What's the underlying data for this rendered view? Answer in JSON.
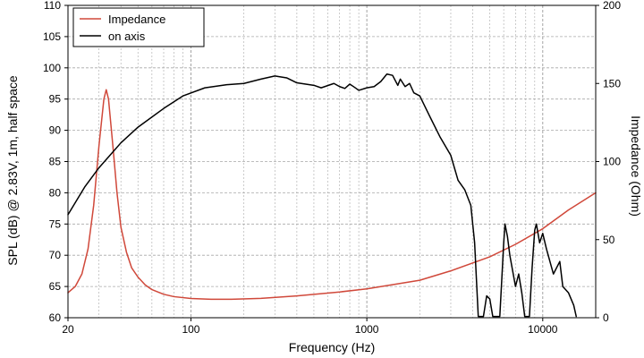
{
  "chart_data": {
    "type": "line",
    "xscale": "log",
    "xlim": [
      20,
      20000
    ],
    "ylim_left": [
      60,
      110
    ],
    "ylim_right": [
      0,
      200
    ],
    "xlabel": "Frequency (Hz)",
    "ylabel_left": "SPL (dB) @ 2.83V, 1m, half space",
    "ylabel_right": "Impedance (Ohm)",
    "x_tick_values": [
      20,
      100,
      1000,
      10000
    ],
    "x_tick_labels": [
      "20",
      "100",
      "1000",
      "10000"
    ],
    "y_left_ticks": [
      "60",
      "65",
      "70",
      "75",
      "80",
      "85",
      "90",
      "95",
      "100",
      "105",
      "110"
    ],
    "y_right_ticks": [
      "0",
      "50",
      "100",
      "150",
      "200"
    ],
    "grid": true,
    "legend_position": "top-left",
    "series": [
      {
        "name": "Impedance",
        "axis": "right",
        "color": "#d0483a",
        "points": [
          [
            20,
            16
          ],
          [
            22,
            20
          ],
          [
            24,
            28
          ],
          [
            26,
            44
          ],
          [
            28,
            72
          ],
          [
            30,
            110
          ],
          [
            32,
            140
          ],
          [
            33,
            146
          ],
          [
            34,
            140
          ],
          [
            36,
            110
          ],
          [
            38,
            80
          ],
          [
            40,
            58
          ],
          [
            43,
            42
          ],
          [
            46,
            32
          ],
          [
            50,
            26
          ],
          [
            55,
            21
          ],
          [
            60,
            18
          ],
          [
            70,
            15
          ],
          [
            80,
            13.5
          ],
          [
            100,
            12.3
          ],
          [
            130,
            11.8
          ],
          [
            170,
            11.8
          ],
          [
            250,
            12.4
          ],
          [
            400,
            14
          ],
          [
            700,
            16.5
          ],
          [
            1000,
            18.5
          ],
          [
            2000,
            24
          ],
          [
            3000,
            30
          ],
          [
            5000,
            39
          ],
          [
            7000,
            47
          ],
          [
            10000,
            57
          ],
          [
            14000,
            69
          ],
          [
            20000,
            80
          ]
        ]
      },
      {
        "name": "on axis",
        "axis": "left",
        "color": "#000000",
        "points": [
          [
            20,
            76.5
          ],
          [
            25,
            81
          ],
          [
            30,
            84
          ],
          [
            40,
            88
          ],
          [
            50,
            90.5
          ],
          [
            70,
            93.5
          ],
          [
            90,
            95.5
          ],
          [
            120,
            96.8
          ],
          [
            160,
            97.3
          ],
          [
            200,
            97.5
          ],
          [
            250,
            98.2
          ],
          [
            300,
            98.7
          ],
          [
            350,
            98.4
          ],
          [
            400,
            97.6
          ],
          [
            500,
            97.2
          ],
          [
            550,
            96.8
          ],
          [
            650,
            97.5
          ],
          [
            700,
            97
          ],
          [
            750,
            96.7
          ],
          [
            800,
            97.4
          ],
          [
            850,
            96.9
          ],
          [
            900,
            96.4
          ],
          [
            1000,
            96.8
          ],
          [
            1100,
            97
          ],
          [
            1200,
            97.8
          ],
          [
            1300,
            99
          ],
          [
            1400,
            98.8
          ],
          [
            1500,
            97.2
          ],
          [
            1550,
            98.2
          ],
          [
            1650,
            97
          ],
          [
            1750,
            97.5
          ],
          [
            1850,
            96
          ],
          [
            2000,
            95.5
          ],
          [
            2300,
            92
          ],
          [
            2600,
            89
          ],
          [
            3000,
            86
          ],
          [
            3300,
            82
          ],
          [
            3600,
            80.5
          ],
          [
            3900,
            78
          ],
          [
            4100,
            72
          ],
          [
            4200,
            66
          ],
          [
            4300,
            60.2
          ],
          [
            4600,
            60.2
          ],
          [
            4800,
            63.5
          ],
          [
            5000,
            63
          ],
          [
            5200,
            60.2
          ],
          [
            5700,
            60.2
          ],
          [
            6000,
            72
          ],
          [
            6100,
            75
          ],
          [
            6300,
            73
          ],
          [
            6500,
            70
          ],
          [
            7000,
            65
          ],
          [
            7300,
            67
          ],
          [
            7600,
            64
          ],
          [
            7900,
            60.2
          ],
          [
            8400,
            60.2
          ],
          [
            8700,
            68
          ],
          [
            9000,
            74
          ],
          [
            9200,
            75
          ],
          [
            9600,
            72
          ],
          [
            10000,
            73.5
          ],
          [
            10500,
            71
          ],
          [
            11500,
            67
          ],
          [
            12500,
            69
          ],
          [
            13000,
            65
          ],
          [
            14000,
            64
          ],
          [
            15000,
            62
          ],
          [
            15500,
            60.2
          ]
        ]
      }
    ]
  }
}
